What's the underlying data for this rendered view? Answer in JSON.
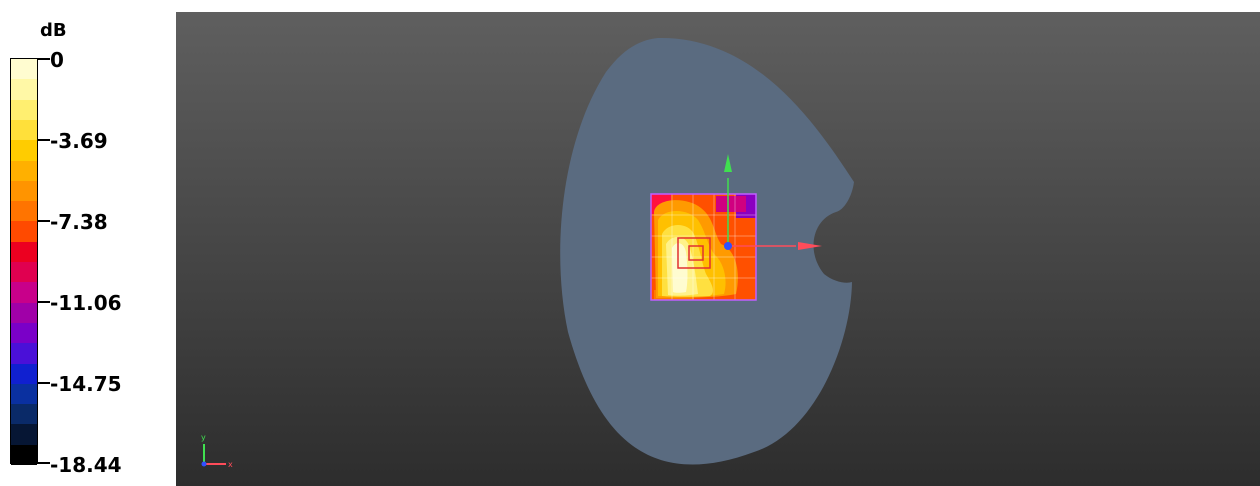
{
  "legend": {
    "unit": "dB",
    "ticks": [
      "0",
      "-3.69",
      "-7.38",
      "-11.06",
      "-14.75",
      "-18.44"
    ],
    "colors": [
      "#fffcd0",
      "#fff8a6",
      "#ffef70",
      "#ffe03a",
      "#ffcc00",
      "#ffb000",
      "#ff9400",
      "#ff7400",
      "#ff4a00",
      "#ec0020",
      "#e00050",
      "#c8008a",
      "#a000a8",
      "#7a00c8",
      "#4a10d8",
      "#1020d0",
      "#0a30a0",
      "#0a2a68",
      "#061634",
      "#000000"
    ]
  },
  "viewport": {
    "background": [
      "#5f5f5f",
      "#2d2d2d"
    ],
    "head_color": "#5a6b80",
    "axis_colors": {
      "x": "#ff4c5a",
      "y": "#40e050",
      "z": "#3050ff"
    }
  },
  "axis_triad": {
    "x_label": "x",
    "y_label": "y"
  }
}
